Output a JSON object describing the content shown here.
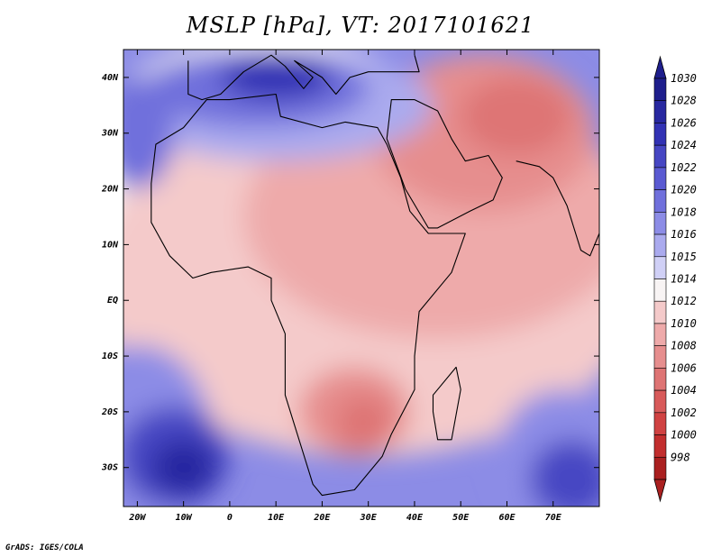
{
  "title": "MSLP [hPa], VT: 2017101621",
  "credit": "GrADS: IGES/COLA",
  "map": {
    "lon_range": [
      -23,
      80
    ],
    "lat_range": [
      -37,
      45
    ],
    "lat_ticks": [
      {
        "value": 40,
        "label": "40N"
      },
      {
        "value": 30,
        "label": "30N"
      },
      {
        "value": 20,
        "label": "20N"
      },
      {
        "value": 10,
        "label": "10N"
      },
      {
        "value": 0,
        "label": "EQ"
      },
      {
        "value": -10,
        "label": "10S"
      },
      {
        "value": -20,
        "label": "20S"
      },
      {
        "value": -30,
        "label": "30S"
      }
    ],
    "lon_ticks": [
      {
        "value": -20,
        "label": "20W"
      },
      {
        "value": -10,
        "label": "10W"
      },
      {
        "value": 0,
        "label": "0"
      },
      {
        "value": 10,
        "label": "10E"
      },
      {
        "value": 20,
        "label": "20E"
      },
      {
        "value": 30,
        "label": "30E"
      },
      {
        "value": 40,
        "label": "40E"
      },
      {
        "value": 50,
        "label": "50E"
      },
      {
        "value": 60,
        "label": "60E"
      },
      {
        "value": 70,
        "label": "70E"
      }
    ]
  },
  "colorbar": {
    "levels": [
      {
        "label": "1030",
        "color": "#1e1e8c"
      },
      {
        "label": "1028",
        "color": "#2828a0"
      },
      {
        "label": "1026",
        "color": "#3232b4"
      },
      {
        "label": "1024",
        "color": "#4646c3"
      },
      {
        "label": "1022",
        "color": "#5a5ad2"
      },
      {
        "label": "1020",
        "color": "#7070dc"
      },
      {
        "label": "1018",
        "color": "#8c8ce6"
      },
      {
        "label": "1016",
        "color": "#aaaaee"
      },
      {
        "label": "1015",
        "color": "#d0d0f6"
      },
      {
        "label": "1014",
        "color": "#f8f4f4"
      },
      {
        "label": "1012",
        "color": "#f4caca"
      },
      {
        "label": "1010",
        "color": "#eeaaaa"
      },
      {
        "label": "1008",
        "color": "#e68e8e"
      },
      {
        "label": "1006",
        "color": "#de7474"
      },
      {
        "label": "1004",
        "color": "#d85a5a"
      },
      {
        "label": "1002",
        "color": "#d04242"
      },
      {
        "label": "1000",
        "color": "#c22e2e"
      },
      {
        "label": "998",
        "color": "#aa2020"
      }
    ]
  },
  "pressure_field": [
    {
      "level": "1014",
      "lon": 8,
      "lat": 20,
      "rx": 42,
      "ry": 28
    },
    {
      "level": "1012",
      "lon": 30,
      "lat": 4,
      "rx": 60,
      "ry": 32
    },
    {
      "level": "1010",
      "lon": 45,
      "lat": 15,
      "rx": 42,
      "ry": 22
    },
    {
      "level": "1008",
      "lon": 55,
      "lat": 30,
      "rx": 24,
      "ry": 14
    },
    {
      "level": "1006",
      "lon": 62,
      "lat": 33,
      "rx": 12,
      "ry": 7
    },
    {
      "level": "1008",
      "lon": 27,
      "lat": -20,
      "rx": 12,
      "ry": 8
    },
    {
      "level": "1006",
      "lon": 29,
      "lat": -22,
      "rx": 6,
      "ry": 5
    },
    {
      "level": "1016",
      "lon": 10,
      "lat": 35,
      "rx": 34,
      "ry": 10
    },
    {
      "level": "1020",
      "lon": 6,
      "lat": 38,
      "rx": 24,
      "ry": 7
    },
    {
      "level": "1026",
      "lon": 10,
      "lat": 40,
      "rx": 12,
      "ry": 4
    },
    {
      "level": "1018",
      "lon": -20,
      "lat": -24,
      "rx": 16,
      "ry": 16
    },
    {
      "level": "1024",
      "lon": -12,
      "lat": -28,
      "rx": 12,
      "ry": 9
    },
    {
      "level": "1028",
      "lon": -10,
      "lat": -30,
      "rx": 7,
      "ry": 5
    },
    {
      "level": "1018",
      "lon": 72,
      "lat": -28,
      "rx": 14,
      "ry": 12
    },
    {
      "level": "1024",
      "lon": 74,
      "lat": -32,
      "rx": 9,
      "ry": 7
    },
    {
      "level": "1020",
      "lon": -20,
      "lat": 30,
      "rx": 8,
      "ry": 10
    }
  ],
  "africa_outline": [
    [
      -17,
      21
    ],
    [
      -16,
      28
    ],
    [
      -10,
      31
    ],
    [
      -5,
      36
    ],
    [
      0,
      36
    ],
    [
      10,
      37
    ],
    [
      11,
      33
    ],
    [
      20,
      31
    ],
    [
      25,
      32
    ],
    [
      32,
      31
    ],
    [
      34,
      28
    ],
    [
      37,
      22
    ],
    [
      39,
      16
    ],
    [
      43,
      12
    ],
    [
      51,
      12
    ],
    [
      48,
      5
    ],
    [
      41,
      -2
    ],
    [
      40,
      -10
    ],
    [
      40,
      -16
    ],
    [
      35,
      -24
    ],
    [
      33,
      -28
    ],
    [
      27,
      -34
    ],
    [
      20,
      -35
    ],
    [
      18,
      -33
    ],
    [
      12,
      -17
    ],
    [
      12,
      -6
    ],
    [
      9,
      0
    ],
    [
      9,
      4
    ],
    [
      4,
      6
    ],
    [
      -4,
      5
    ],
    [
      -8,
      4
    ],
    [
      -13,
      8
    ],
    [
      -17,
      14
    ],
    [
      -17,
      21
    ]
  ],
  "arabia_outline": [
    [
      34,
      29
    ],
    [
      38,
      20
    ],
    [
      43,
      13
    ],
    [
      45,
      13
    ],
    [
      52,
      16
    ],
    [
      57,
      18
    ],
    [
      59,
      22
    ],
    [
      56,
      26
    ],
    [
      51,
      25
    ],
    [
      48,
      29
    ],
    [
      45,
      34
    ],
    [
      40,
      36
    ],
    [
      35,
      36
    ],
    [
      34,
      29
    ]
  ],
  "europe_coast": [
    [
      -9,
      43
    ],
    [
      -9,
      37
    ],
    [
      -6,
      36
    ],
    [
      -2,
      37
    ],
    [
      3,
      41
    ],
    [
      9,
      44
    ],
    [
      12,
      42
    ],
    [
      16,
      38
    ],
    [
      18,
      40
    ],
    [
      14,
      43
    ],
    [
      20,
      40
    ],
    [
      23,
      37
    ],
    [
      26,
      40
    ],
    [
      30,
      41
    ],
    [
      36,
      41
    ],
    [
      41,
      41
    ],
    [
      40,
      44
    ]
  ],
  "india_coast": [
    [
      62,
      25
    ],
    [
      67,
      24
    ],
    [
      70,
      22
    ],
    [
      73,
      17
    ],
    [
      76,
      9
    ],
    [
      78,
      8
    ],
    [
      80,
      12
    ]
  ],
  "madagascar_outline": [
    [
      49,
      -12
    ],
    [
      50,
      -16
    ],
    [
      48,
      -25
    ],
    [
      45,
      -25
    ],
    [
      44,
      -20
    ],
    [
      44,
      -17
    ],
    [
      49,
      -12
    ]
  ]
}
